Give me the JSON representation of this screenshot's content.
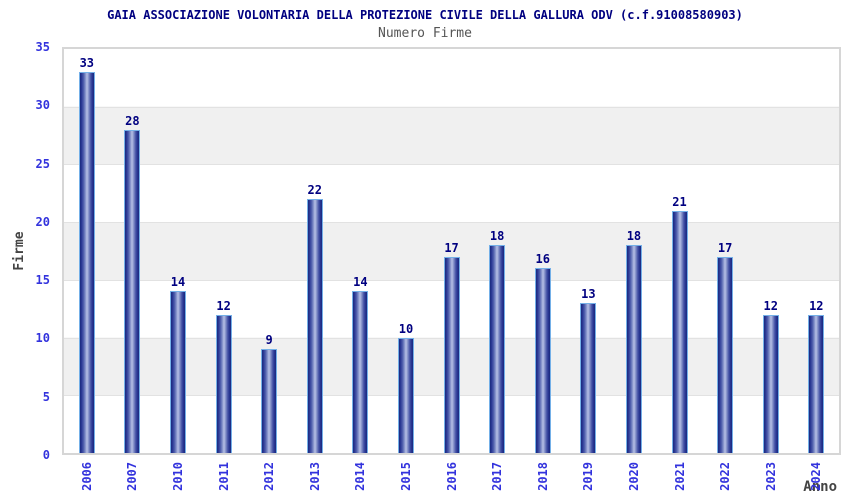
{
  "chart_data": {
    "type": "bar",
    "title": "GAIA ASSOCIAZIONE VOLONTARIA DELLA PROTEZIONE CIVILE DELLA GALLURA ODV (c.f.91008580903)",
    "subtitle": "Numero Firme",
    "xlabel": "Anno",
    "ylabel": "Firme",
    "ylim": [
      0,
      35
    ],
    "yticks": [
      0,
      5,
      10,
      15,
      20,
      25,
      30,
      35
    ],
    "grid": "alternating horizontal bands of 5 units (gray on 5-10, 15-20, 25-30) with light gridlines",
    "legend": false,
    "categories": [
      "2006",
      "2007",
      "2010",
      "2011",
      "2012",
      "2013",
      "2014",
      "2015",
      "2016",
      "2017",
      "2018",
      "2019",
      "2020",
      "2021",
      "2022",
      "2023",
      "2024"
    ],
    "values": [
      33,
      28,
      14,
      12,
      9,
      22,
      14,
      10,
      17,
      18,
      16,
      13,
      18,
      21,
      17,
      12,
      12
    ],
    "colors": {
      "title": "#000080",
      "subtitle": "#555555",
      "bar_dark": "#1b2b7e",
      "bar_highlight": "#b7c0e6",
      "bar_border": "#74b0e8",
      "value_label": "#000080",
      "tick_label": "#3333dd",
      "axis_title": "#444444",
      "band_gray": "#f0f0f0",
      "plot_border": "#d6d6d6"
    }
  }
}
